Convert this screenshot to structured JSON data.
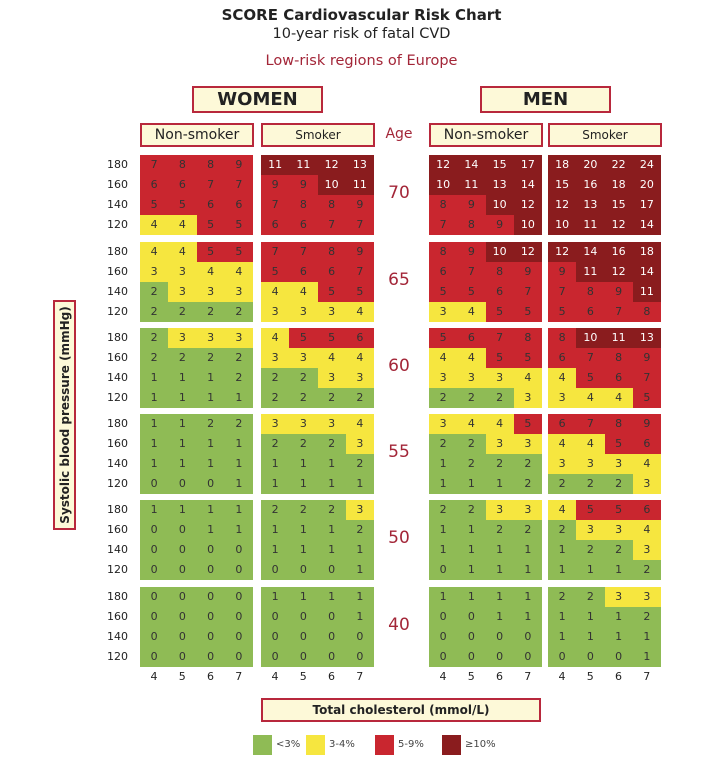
{
  "chart_data": {
    "type": "table",
    "title": "SCORE Cardiovascular Risk Chart",
    "subtitle": "10-year risk of fatal CVD",
    "region": "Low-risk regions of Europe",
    "sexes": [
      "WOMEN",
      "MEN"
    ],
    "smoking": [
      "Non-smoker",
      "Smoker"
    ],
    "age_header": "Age",
    "ylabel": "Systolic blood pressure (mmHg)",
    "xlabel": "Total cholesterol (mmol/L)",
    "sbp_levels": [
      "180",
      "160",
      "140",
      "120"
    ],
    "cholesterol_levels": [
      "4",
      "5",
      "6",
      "7"
    ],
    "age_groups": [
      {
        "age": "70",
        "women": {
          "non_smoker": [
            [
              7,
              8,
              8,
              9
            ],
            [
              6,
              6,
              7,
              7
            ],
            [
              5,
              5,
              6,
              6
            ],
            [
              4,
              4,
              5,
              5
            ]
          ],
          "smoker": [
            [
              11,
              11,
              12,
              13
            ],
            [
              9,
              9,
              10,
              11
            ],
            [
              7,
              8,
              8,
              9
            ],
            [
              6,
              6,
              7,
              7
            ]
          ]
        },
        "men": {
          "non_smoker": [
            [
              12,
              14,
              15,
              17
            ],
            [
              10,
              11,
              13,
              14
            ],
            [
              8,
              9,
              10,
              12
            ],
            [
              7,
              8,
              9,
              10
            ]
          ],
          "smoker": [
            [
              18,
              20,
              22,
              24
            ],
            [
              15,
              16,
              18,
              20
            ],
            [
              12,
              13,
              15,
              17
            ],
            [
              10,
              11,
              12,
              14
            ]
          ]
        }
      },
      {
        "age": "65",
        "women": {
          "non_smoker": [
            [
              4,
              4,
              5,
              5
            ],
            [
              3,
              3,
              4,
              4
            ],
            [
              2,
              3,
              3,
              3
            ],
            [
              2,
              2,
              2,
              2
            ]
          ],
          "smoker": [
            [
              7,
              7,
              8,
              9
            ],
            [
              5,
              6,
              6,
              7
            ],
            [
              4,
              4,
              5,
              5
            ],
            [
              3,
              3,
              3,
              4
            ]
          ]
        },
        "men": {
          "non_smoker": [
            [
              8,
              9,
              10,
              12
            ],
            [
              6,
              7,
              8,
              9
            ],
            [
              5,
              5,
              6,
              7
            ],
            [
              3,
              4,
              5,
              5
            ]
          ],
          "smoker": [
            [
              12,
              14,
              16,
              18
            ],
            [
              9,
              11,
              12,
              14
            ],
            [
              7,
              8,
              9,
              11
            ],
            [
              5,
              6,
              7,
              8
            ]
          ]
        }
      },
      {
        "age": "60",
        "women": {
          "non_smoker": [
            [
              2,
              3,
              3,
              3
            ],
            [
              2,
              2,
              2,
              2
            ],
            [
              1,
              1,
              1,
              2
            ],
            [
              1,
              1,
              1,
              1
            ]
          ],
          "smoker": [
            [
              4,
              5,
              5,
              6
            ],
            [
              3,
              3,
              4,
              4
            ],
            [
              2,
              2,
              3,
              3
            ],
            [
              2,
              2,
              2,
              2
            ]
          ]
        },
        "men": {
          "non_smoker": [
            [
              5,
              6,
              7,
              8
            ],
            [
              4,
              4,
              5,
              5
            ],
            [
              3,
              3,
              3,
              4
            ],
            [
              2,
              2,
              2,
              3
            ]
          ],
          "smoker": [
            [
              8,
              10,
              11,
              13
            ],
            [
              6,
              7,
              8,
              9
            ],
            [
              4,
              5,
              6,
              7
            ],
            [
              3,
              4,
              4,
              5
            ]
          ]
        }
      },
      {
        "age": "55",
        "women": {
          "non_smoker": [
            [
              1,
              1,
              2,
              2
            ],
            [
              1,
              1,
              1,
              1
            ],
            [
              1,
              1,
              1,
              1
            ],
            [
              0,
              0,
              0,
              1
            ]
          ],
          "smoker": [
            [
              3,
              3,
              3,
              4
            ],
            [
              2,
              2,
              2,
              3
            ],
            [
              1,
              1,
              1,
              2
            ],
            [
              1,
              1,
              1,
              1
            ]
          ]
        },
        "men": {
          "non_smoker": [
            [
              3,
              4,
              4,
              5
            ],
            [
              2,
              2,
              3,
              3
            ],
            [
              1,
              2,
              2,
              2
            ],
            [
              1,
              1,
              1,
              2
            ]
          ],
          "smoker": [
            [
              6,
              7,
              8,
              9
            ],
            [
              4,
              4,
              5,
              6
            ],
            [
              3,
              3,
              3,
              4
            ],
            [
              2,
              2,
              2,
              3
            ]
          ]
        }
      },
      {
        "age": "50",
        "women": {
          "non_smoker": [
            [
              1,
              1,
              1,
              1
            ],
            [
              0,
              0,
              1,
              1
            ],
            [
              0,
              0,
              0,
              0
            ],
            [
              0,
              0,
              0,
              0
            ]
          ],
          "smoker": [
            [
              2,
              2,
              2,
              3
            ],
            [
              1,
              1,
              1,
              2
            ],
            [
              1,
              1,
              1,
              1
            ],
            [
              0,
              0,
              0,
              1
            ]
          ]
        },
        "men": {
          "non_smoker": [
            [
              2,
              2,
              3,
              3
            ],
            [
              1,
              1,
              2,
              2
            ],
            [
              1,
              1,
              1,
              1
            ],
            [
              0,
              1,
              1,
              1
            ]
          ],
          "smoker": [
            [
              4,
              5,
              5,
              6
            ],
            [
              2,
              3,
              3,
              4
            ],
            [
              1,
              2,
              2,
              3
            ],
            [
              1,
              1,
              1,
              2
            ]
          ]
        }
      },
      {
        "age": "40",
        "women": {
          "non_smoker": [
            [
              0,
              0,
              0,
              0
            ],
            [
              0,
              0,
              0,
              0
            ],
            [
              0,
              0,
              0,
              0
            ],
            [
              0,
              0,
              0,
              0
            ]
          ],
          "smoker": [
            [
              1,
              1,
              1,
              1
            ],
            [
              0,
              0,
              0,
              1
            ],
            [
              0,
              0,
              0,
              0
            ],
            [
              0,
              0,
              0,
              0
            ]
          ]
        },
        "men": {
          "non_smoker": [
            [
              1,
              1,
              1,
              1
            ],
            [
              0,
              0,
              1,
              1
            ],
            [
              0,
              0,
              0,
              0
            ],
            [
              0,
              0,
              0,
              0
            ]
          ],
          "smoker": [
            [
              2,
              2,
              3,
              3
            ],
            [
              1,
              1,
              1,
              2
            ],
            [
              1,
              1,
              1,
              1
            ],
            [
              0,
              0,
              0,
              1
            ]
          ]
        }
      }
    ],
    "legend": [
      {
        "label": "<3%",
        "color": "#8fbb55",
        "min": 0,
        "max": 2
      },
      {
        "label": "3-4%",
        "color": "#f6e63f",
        "min": 3,
        "max": 4
      },
      {
        "label": "5-9%",
        "color": "#c9262f",
        "min": 5,
        "max": 9
      },
      {
        "label": "≥10%",
        "color": "#8a1c1e",
        "min": 10,
        "max": 99
      }
    ]
  }
}
